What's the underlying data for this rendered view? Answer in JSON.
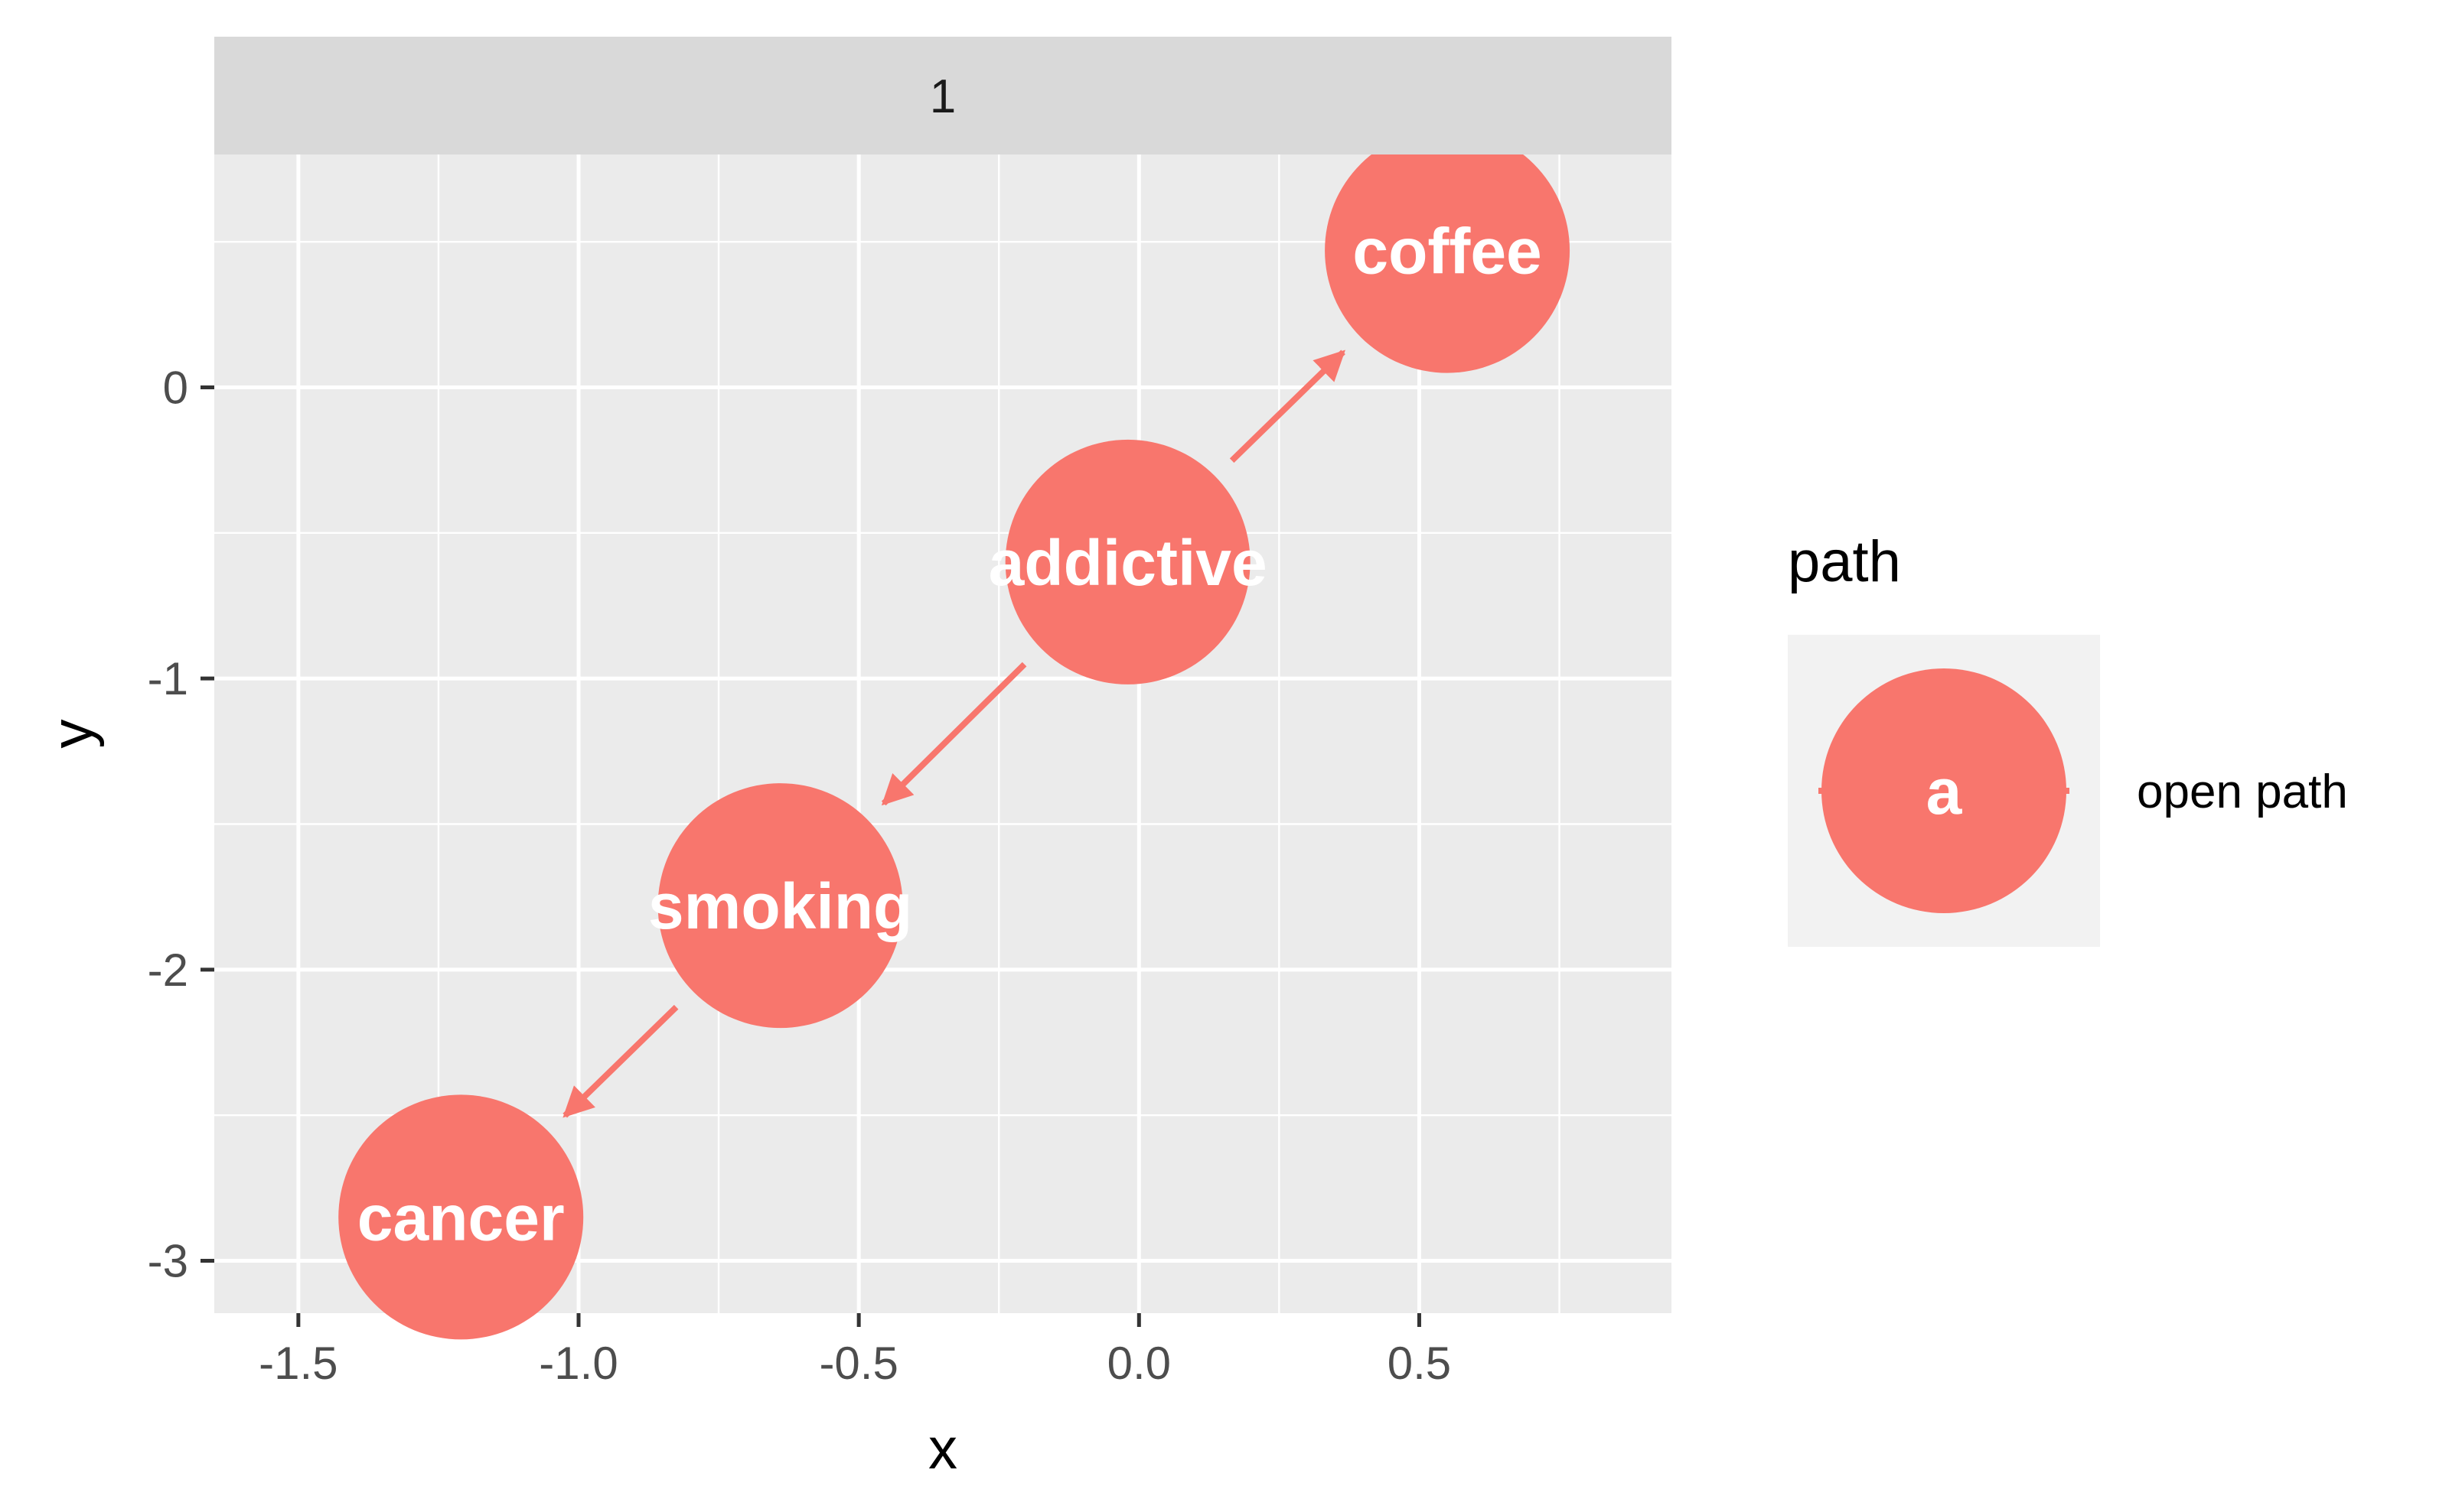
{
  "chart_data": {
    "type": "scatter",
    "subtype": "dag",
    "facet_label": "1",
    "xlabel": "x",
    "ylabel": "y",
    "xlim": [
      -1.65,
      0.95
    ],
    "ylim": [
      -3.18,
      0.8
    ],
    "x_ticks": [
      {
        "value": -1.5,
        "label": "-1.5"
      },
      {
        "value": -1.0,
        "label": "-1.0"
      },
      {
        "value": -0.5,
        "label": "-0.5"
      },
      {
        "value": 0.0,
        "label": "0.0"
      },
      {
        "value": 0.5,
        "label": "0.5"
      }
    ],
    "y_ticks": [
      {
        "value": 0,
        "label": "0"
      },
      {
        "value": -1,
        "label": "-1"
      },
      {
        "value": -2,
        "label": "-2"
      },
      {
        "value": -3,
        "label": "-3"
      }
    ],
    "nodes": [
      {
        "name": "coffee",
        "x": 0.55,
        "y": 0.47
      },
      {
        "name": "addictive",
        "x": -0.02,
        "y": -0.6
      },
      {
        "name": "smoking",
        "x": -0.64,
        "y": -1.78
      },
      {
        "name": "cancer",
        "x": -1.21,
        "y": -2.85
      }
    ],
    "edges": [
      {
        "from": "addictive",
        "to": "coffee"
      },
      {
        "from": "addictive",
        "to": "smoking"
      },
      {
        "from": "smoking",
        "to": "cancer"
      }
    ],
    "legend": {
      "title": "path",
      "key_glyph": "a",
      "entries": [
        {
          "label": "open path",
          "color": "#F8766D"
        }
      ],
      "position": "right"
    },
    "colors": {
      "node": "#F8766D",
      "panel": "#EBEBEB",
      "grid": "#FFFFFF",
      "strip": "#D9D9D9",
      "legend_key": "#F2F2F2"
    },
    "grid": true
  }
}
